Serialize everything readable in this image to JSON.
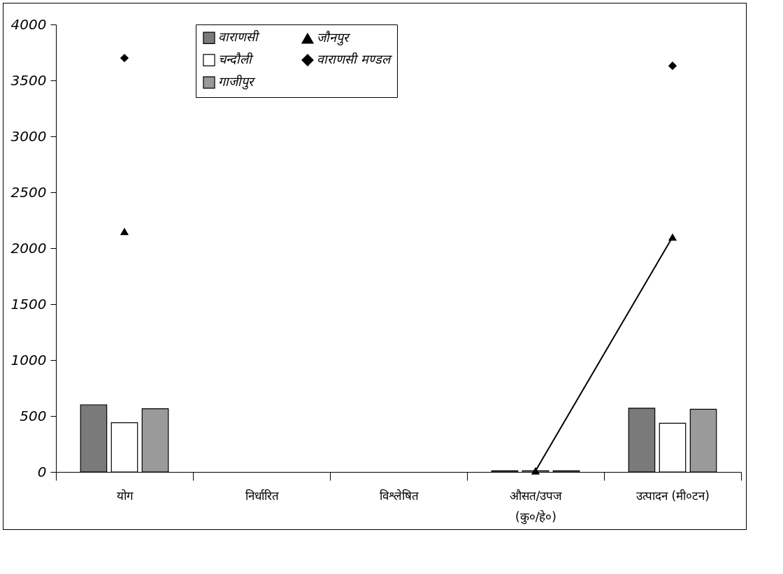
{
  "chart_data": {
    "type": "bar",
    "categories": [
      "योग",
      "निर्धारित",
      "विश्लेषित",
      "औसत/उपज\n(कु०/हे०)",
      "उत्पादन (मी०टन)"
    ],
    "series": [
      {
        "name": "वाराणसी",
        "color": "#7a7a7a",
        "values": [
          600,
          null,
          null,
          10,
          570
        ]
      },
      {
        "name": "चन्दौली",
        "color": "#ffffff",
        "values": [
          440,
          null,
          null,
          10,
          435
        ]
      },
      {
        "name": "गाजीपुर",
        "color": "#9a9a9a",
        "values": [
          565,
          null,
          null,
          10,
          560
        ]
      },
      {
        "name": "जौनपुर",
        "type": "line",
        "color": "#000000",
        "marker": "triangle",
        "values": [
          2150,
          null,
          null,
          10,
          2100
        ]
      },
      {
        "name": "वाराणसी मण्डल",
        "type": "scatter",
        "color": "#000000",
        "marker": "diamond",
        "values": [
          3700,
          null,
          null,
          null,
          3630
        ]
      }
    ],
    "ylim": [
      0,
      4000
    ],
    "yticks": [
      0,
      500,
      1000,
      1500,
      2000,
      2500,
      3000,
      3500,
      4000
    ],
    "grid": false,
    "legend": "top"
  }
}
